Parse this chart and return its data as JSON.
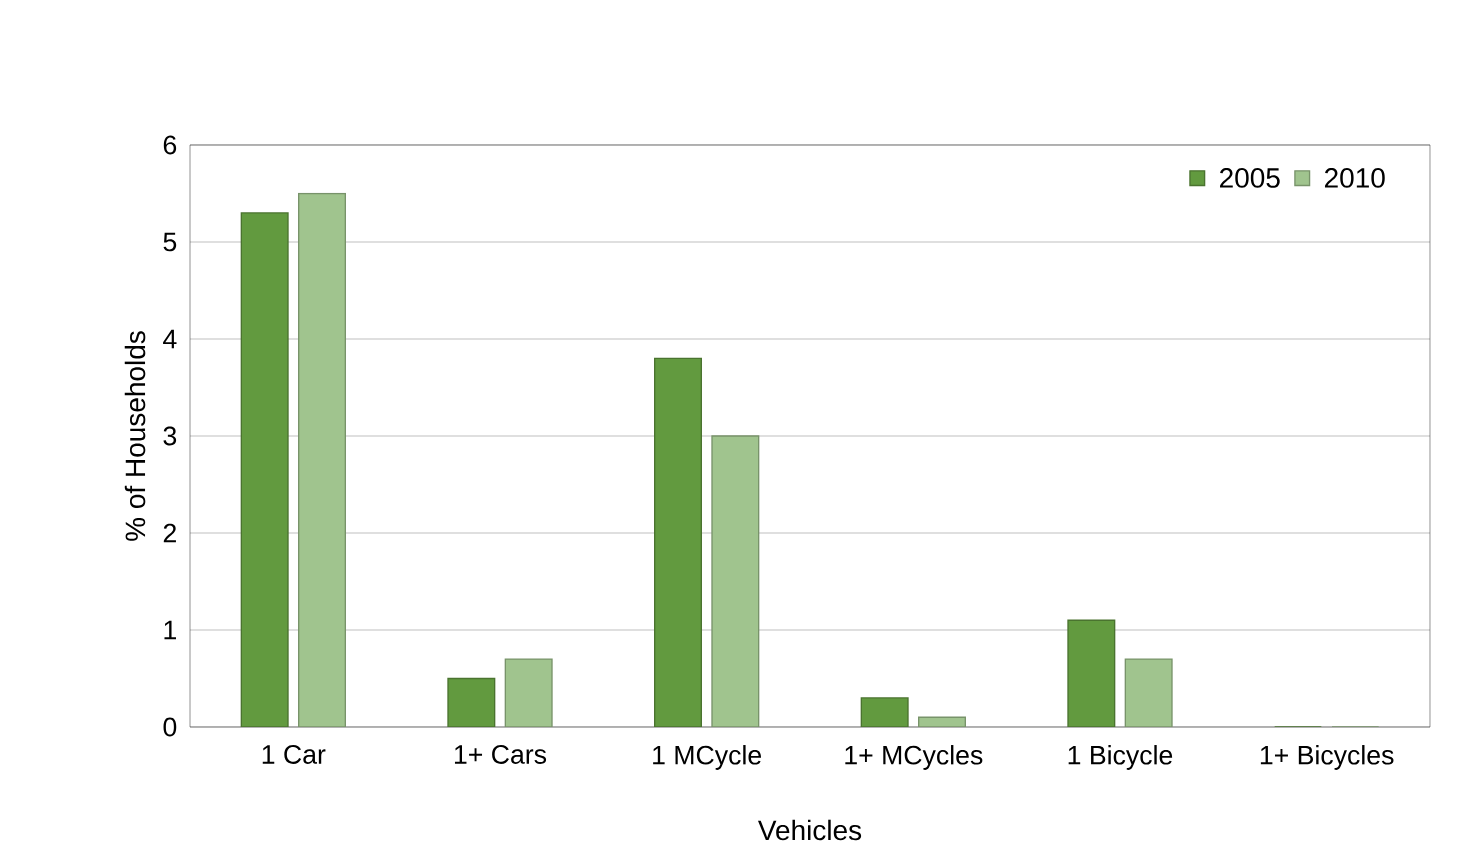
{
  "chart_data": {
    "type": "bar",
    "xlabel": "Vehicles",
    "ylabel": "% of Households",
    "categories": [
      "1 Car",
      "1+ Cars",
      "1 MCycle",
      "1+ MCycles",
      "1 Bicycle",
      "1+ Bicycles"
    ],
    "series": [
      {
        "name": "2005",
        "color": "#629a3f",
        "values": [
          5.3,
          0.5,
          3.8,
          0.3,
          1.1,
          0
        ]
      },
      {
        "name": "2010",
        "color": "#a0c48e",
        "values": [
          5.5,
          0.7,
          3.0,
          0.1,
          0.7,
          0
        ]
      }
    ],
    "ylim": [
      0,
      6
    ],
    "yticks": [
      0,
      1,
      2,
      3,
      4,
      5,
      6
    ],
    "grid": "y",
    "legend": "top right"
  }
}
